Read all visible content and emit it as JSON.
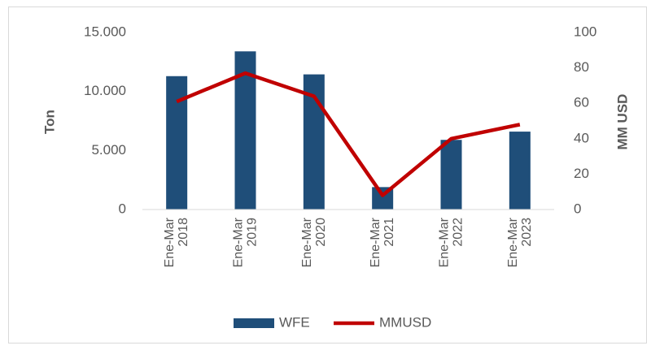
{
  "chart_data": {
    "type": "bar-line",
    "categories": [
      "Ene-Mar 2018",
      "Ene-Mar 2019",
      "Ene-Mar 2020",
      "Ene-Mar 2021",
      "Ene-Mar 2022",
      "Ene-Mar 2023"
    ],
    "series": [
      {
        "name": "WFE",
        "color": "#1f4e79",
        "type": "bar",
        "values": [
          11300,
          13400,
          11450,
          1900,
          5900,
          6600
        ]
      },
      {
        "name": "MMUSD",
        "color": "#c00000",
        "type": "line",
        "axis": "y2",
        "values": [
          61,
          77,
          64,
          8,
          40,
          48
        ]
      }
    ],
    "y_label": "Ton",
    "y2_label": "MM USD",
    "ylim": [
      0,
      15000
    ],
    "yticks": [
      0,
      {
        "value": 5000,
        "label": "5.000"
      },
      {
        "value": 10000,
        "label": "10.000"
      },
      {
        "value": 15000,
        "label": "15.000"
      }
    ],
    "y2lim": [
      0,
      100
    ],
    "y2ticks": [
      0,
      20,
      40,
      60,
      80,
      100
    ],
    "legend": "bottom"
  }
}
